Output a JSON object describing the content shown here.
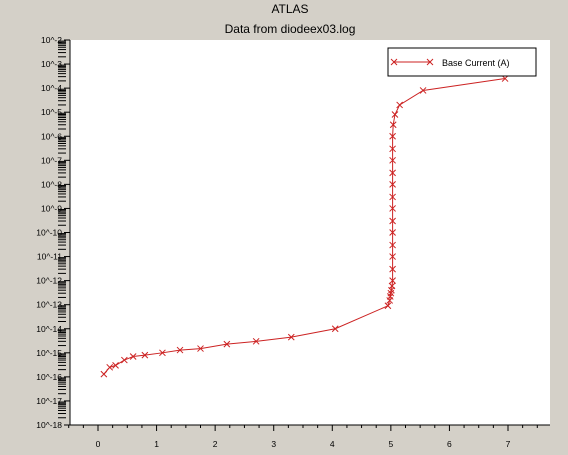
{
  "colors": {
    "background": "#d4d0c8",
    "plot_area": "#ffffff",
    "series": "#cc2222",
    "axis": "#000000"
  },
  "chart_data": {
    "type": "line",
    "title": "ATLAS",
    "subtitle": "Data from diodeex03.log",
    "xlabel": "",
    "ylabel": "",
    "y_scale": "log",
    "xlim": [
      -0.5,
      7.7
    ],
    "ylim": [
      1e-18,
      0.01
    ],
    "x_ticks": [
      0,
      1,
      2,
      3,
      4,
      5,
      6,
      7
    ],
    "x_tick_labels": [
      "0",
      "1",
      "2",
      "3",
      "4",
      "5",
      "6",
      "7"
    ],
    "y_ticks": [
      0.01,
      0.001,
      0.0001,
      1e-05,
      1e-06,
      1e-07,
      1e-08,
      1e-09,
      1e-10,
      1e-11,
      1e-12,
      1e-13,
      1e-14,
      1e-15,
      1e-16,
      1e-17,
      1e-18
    ],
    "y_tick_labels": [
      "10^-2",
      "10^-3",
      "10^-4",
      "10^-5",
      "10^-6",
      "10^-7",
      "10^-8",
      "10^-9",
      "10^-10",
      "10^-11",
      "10^-12",
      "10^-13",
      "10^-14",
      "10^-15",
      "10^-16",
      "10^-17",
      "10^-18"
    ],
    "grid": false,
    "legend_position": "top-right",
    "series": [
      {
        "name": "Base Current (A)",
        "marker": "x",
        "color": "#cc2222",
        "x": [
          0.1,
          0.2,
          0.3,
          0.45,
          0.6,
          0.8,
          1.1,
          1.4,
          1.75,
          2.2,
          2.7,
          3.3,
          4.05,
          4.95,
          4.98,
          4.99,
          5.0,
          5.01,
          5.02,
          5.03,
          5.03,
          5.03,
          5.03,
          5.03,
          5.03,
          5.03,
          5.03,
          5.03,
          5.03,
          5.03,
          5.03,
          5.03,
          5.04,
          5.07,
          5.15,
          5.55,
          6.95
        ],
        "y": [
          1.3e-16,
          2.5e-16,
          3e-16,
          5e-16,
          7e-16,
          8e-16,
          1e-15,
          1.3e-15,
          1.5e-15,
          2.3e-15,
          3e-15,
          4.5e-15,
          1e-14,
          9e-14,
          1.5e-13,
          2.2e-13,
          3e-13,
          4e-13,
          6e-13,
          1e-12,
          3e-12,
          1e-11,
          3e-11,
          1e-10,
          3e-10,
          1e-09,
          3e-09,
          1e-08,
          3e-08,
          1e-07,
          3e-07,
          1e-06,
          3e-06,
          8e-06,
          2e-05,
          8e-05,
          0.00025
        ]
      }
    ]
  }
}
